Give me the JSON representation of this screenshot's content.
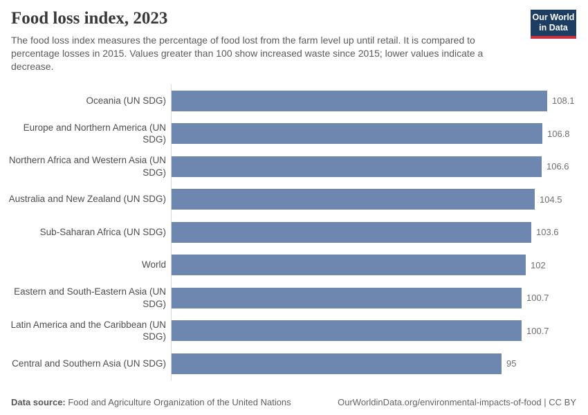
{
  "header": {
    "title": "Food loss index, 2023",
    "subtitle": "The food loss index measures the percentage of food lost from the farm level up until retail. It is compared to percentage losses in 2015. Values greater than 100 show increased waste since 2015; lower values indicate a decrease.",
    "logo": {
      "line1": "Our World",
      "line2": "in Data"
    }
  },
  "chart_data": {
    "type": "bar",
    "orientation": "horizontal",
    "title": "Food loss index, 2023",
    "categories": [
      "Oceania (UN SDG)",
      "Europe and Northern America (UN SDG)",
      "Northern Africa and Western Asia (UN SDG)",
      "Australia and New Zealand (UN SDG)",
      "Sub-Saharan Africa (UN SDG)",
      "World",
      "Eastern and South-Eastern Asia (UN SDG)",
      "Latin America and the Caribbean (UN SDG)",
      "Central and Southern Asia (UN SDG)"
    ],
    "values": [
      108.1,
      106.8,
      106.6,
      104.5,
      103.6,
      102,
      100.7,
      100.7,
      95
    ],
    "value_labels": [
      "108.1",
      "106.8",
      "106.6",
      "104.5",
      "103.6",
      "102",
      "100.7",
      "100.7",
      "95"
    ],
    "xlim": [
      0,
      108.1
    ],
    "grid": false,
    "legend": "none",
    "bar_color": "#6e87b1",
    "axis_color": "#d9d9d9"
  },
  "footer": {
    "source_label": "Data source:",
    "source_text": " Food and Agriculture Organization of the United Nations",
    "attribution": "OurWorldinData.org/environmental-impacts-of-food | CC BY"
  }
}
